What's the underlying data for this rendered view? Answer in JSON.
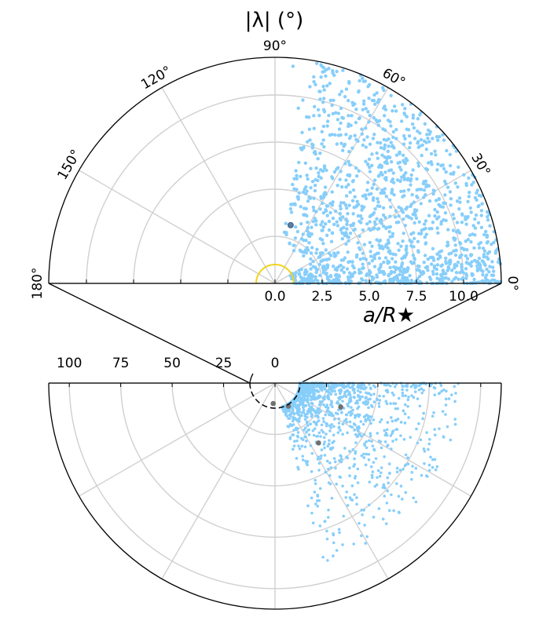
{
  "chart_data": [
    {
      "type": "scatter",
      "projection": "polar-half",
      "title": "|λ| (°)",
      "xlabel": "a/R★",
      "angle_unit": "degrees",
      "angle_range": [
        0,
        180
      ],
      "radius_range": [
        0,
        12
      ],
      "radial_tick_labels": [
        "0.0",
        "2.5",
        "5.0",
        "7.5",
        "10.0"
      ],
      "radial_ticks": [
        0,
        2.5,
        5,
        7.5,
        10
      ],
      "angle_tick_labels": [
        "0°",
        "30°",
        "60°",
        "90°",
        "120°",
        "150°",
        "180°"
      ],
      "angle_ticks": [
        0,
        30,
        60,
        90,
        120,
        150,
        180
      ],
      "grid": true,
      "stellar_radius_circle": {
        "r": 1,
        "color": "#f2d21b"
      },
      "series": [
        {
          "color": "#87cefa",
          "count": 1500,
          "description_range": {
            "r": [
              0.8,
              12
            ],
            "angle_deg": [
              0,
              90
            ]
          },
          "points": [
            [
              1.3,
              2
            ],
            [
              2.0,
              3
            ],
            [
              2.8,
              5
            ],
            [
              3.4,
              1
            ],
            [
              4.0,
              8
            ],
            [
              4.6,
              3
            ],
            [
              5.1,
              12
            ],
            [
              5.7,
              6
            ],
            [
              6.2,
              2
            ],
            [
              6.8,
              15
            ],
            [
              7.3,
              9
            ],
            [
              7.9,
              4
            ],
            [
              8.4,
              20
            ],
            [
              9.0,
              11
            ],
            [
              9.6,
              6
            ],
            [
              10.2,
              24
            ],
            [
              10.8,
              14
            ],
            [
              11.4,
              8
            ],
            [
              3.0,
              25
            ],
            [
              4.5,
              30
            ],
            [
              6.0,
              33
            ],
            [
              7.5,
              38
            ],
            [
              9.0,
              42
            ],
            [
              10.5,
              35
            ],
            [
              11.5,
              45
            ],
            [
              5.0,
              50
            ],
            [
              8.0,
              52
            ],
            [
              10.0,
              55
            ],
            [
              6.5,
              58
            ],
            [
              11.0,
              62
            ],
            [
              8.5,
              68
            ],
            [
              7.0,
              71
            ],
            [
              9.5,
              76
            ],
            [
              2.5,
              40
            ],
            [
              3.8,
              55
            ],
            [
              1.8,
              20
            ],
            [
              12.0,
              28
            ],
            [
              11.8,
              15
            ],
            [
              12.0,
              5
            ],
            [
              9.2,
              65
            ]
          ]
        },
        {
          "name": "",
          "color": "#5a7fa3",
          "points": [
            [
              3.2,
              75
            ]
          ]
        }
      ]
    },
    {
      "type": "scatter",
      "projection": "polar-half-inverted",
      "angle_unit": "degrees",
      "radius_range": [
        0,
        110
      ],
      "radial_tick_labels": [
        "100",
        "75",
        "50",
        "25",
        "0"
      ],
      "radial_ticks": [
        100,
        75,
        50,
        25,
        0
      ],
      "grid": true,
      "inset_circle": {
        "r": 12
      },
      "series": [
        {
          "color": "#87cefa",
          "count": 1500,
          "points": [
            [
              14,
              -5
            ],
            [
              18,
              -12
            ],
            [
              22,
              -20
            ],
            [
              26,
              -8
            ],
            [
              30,
              -28
            ],
            [
              34,
              -15
            ],
            [
              38,
              -35
            ],
            [
              42,
              -22
            ],
            [
              46,
              -10
            ],
            [
              50,
              -30
            ],
            [
              55,
              -40
            ],
            [
              60,
              -18
            ],
            [
              65,
              -25
            ],
            [
              70,
              -45
            ],
            [
              75,
              -32
            ],
            [
              80,
              -20
            ],
            [
              85,
              -28
            ],
            [
              20,
              -60
            ],
            [
              25,
              -65
            ],
            [
              28,
              -55
            ],
            [
              16,
              -40
            ],
            [
              40,
              -50
            ],
            [
              35,
              -55
            ],
            [
              48,
              -48
            ]
          ]
        },
        {
          "color": "#707070",
          "points": [
            [
              34,
              -20
            ],
            [
              10,
              -95
            ],
            [
              13,
              -60
            ],
            [
              36,
              -54
            ]
          ]
        }
      ]
    }
  ]
}
